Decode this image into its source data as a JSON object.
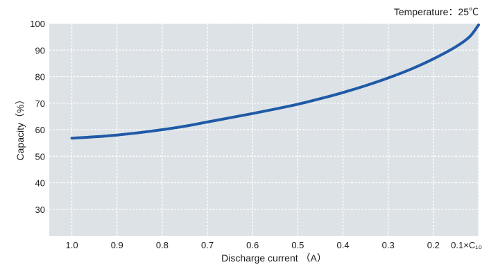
{
  "chart_data": {
    "type": "line",
    "annotation": "Temperature：25℃",
    "xlabel": "Discharge current （A）",
    "ylabel": "Capacity（%）",
    "x_tick_labels": [
      "1.0",
      "0.9",
      "0.8",
      "0.7",
      "0.6",
      "0.5",
      "0.4",
      "0.3",
      "0.2",
      "0.1×C₁₀"
    ],
    "x_ticks": [
      1.0,
      0.9,
      0.8,
      0.7,
      0.6,
      0.5,
      0.4,
      0.3,
      0.2,
      0.1
    ],
    "y_ticks": [
      30,
      40,
      50,
      60,
      70,
      80,
      90,
      100
    ],
    "xlim": [
      1.05,
      0.1
    ],
    "ylim": [
      20,
      100
    ],
    "x_reversed": true,
    "grid": true,
    "series": [
      {
        "color": "#1f5aa6",
        "x": [
          1.0,
          0.95,
          0.9,
          0.85,
          0.8,
          0.75,
          0.7,
          0.65,
          0.6,
          0.55,
          0.5,
          0.45,
          0.4,
          0.35,
          0.3,
          0.25,
          0.2,
          0.15,
          0.12,
          0.1
        ],
        "y": [
          56.8,
          57.3,
          58.0,
          58.9,
          60.0,
          61.3,
          62.9,
          64.5,
          66.1,
          67.8,
          69.6,
          71.7,
          74.0,
          76.6,
          79.5,
          82.8,
          86.7,
          91.3,
          95.0,
          99.5
        ]
      }
    ],
    "colors": {
      "plot_background": "#dde2e6",
      "grid": "#ffffff"
    }
  }
}
